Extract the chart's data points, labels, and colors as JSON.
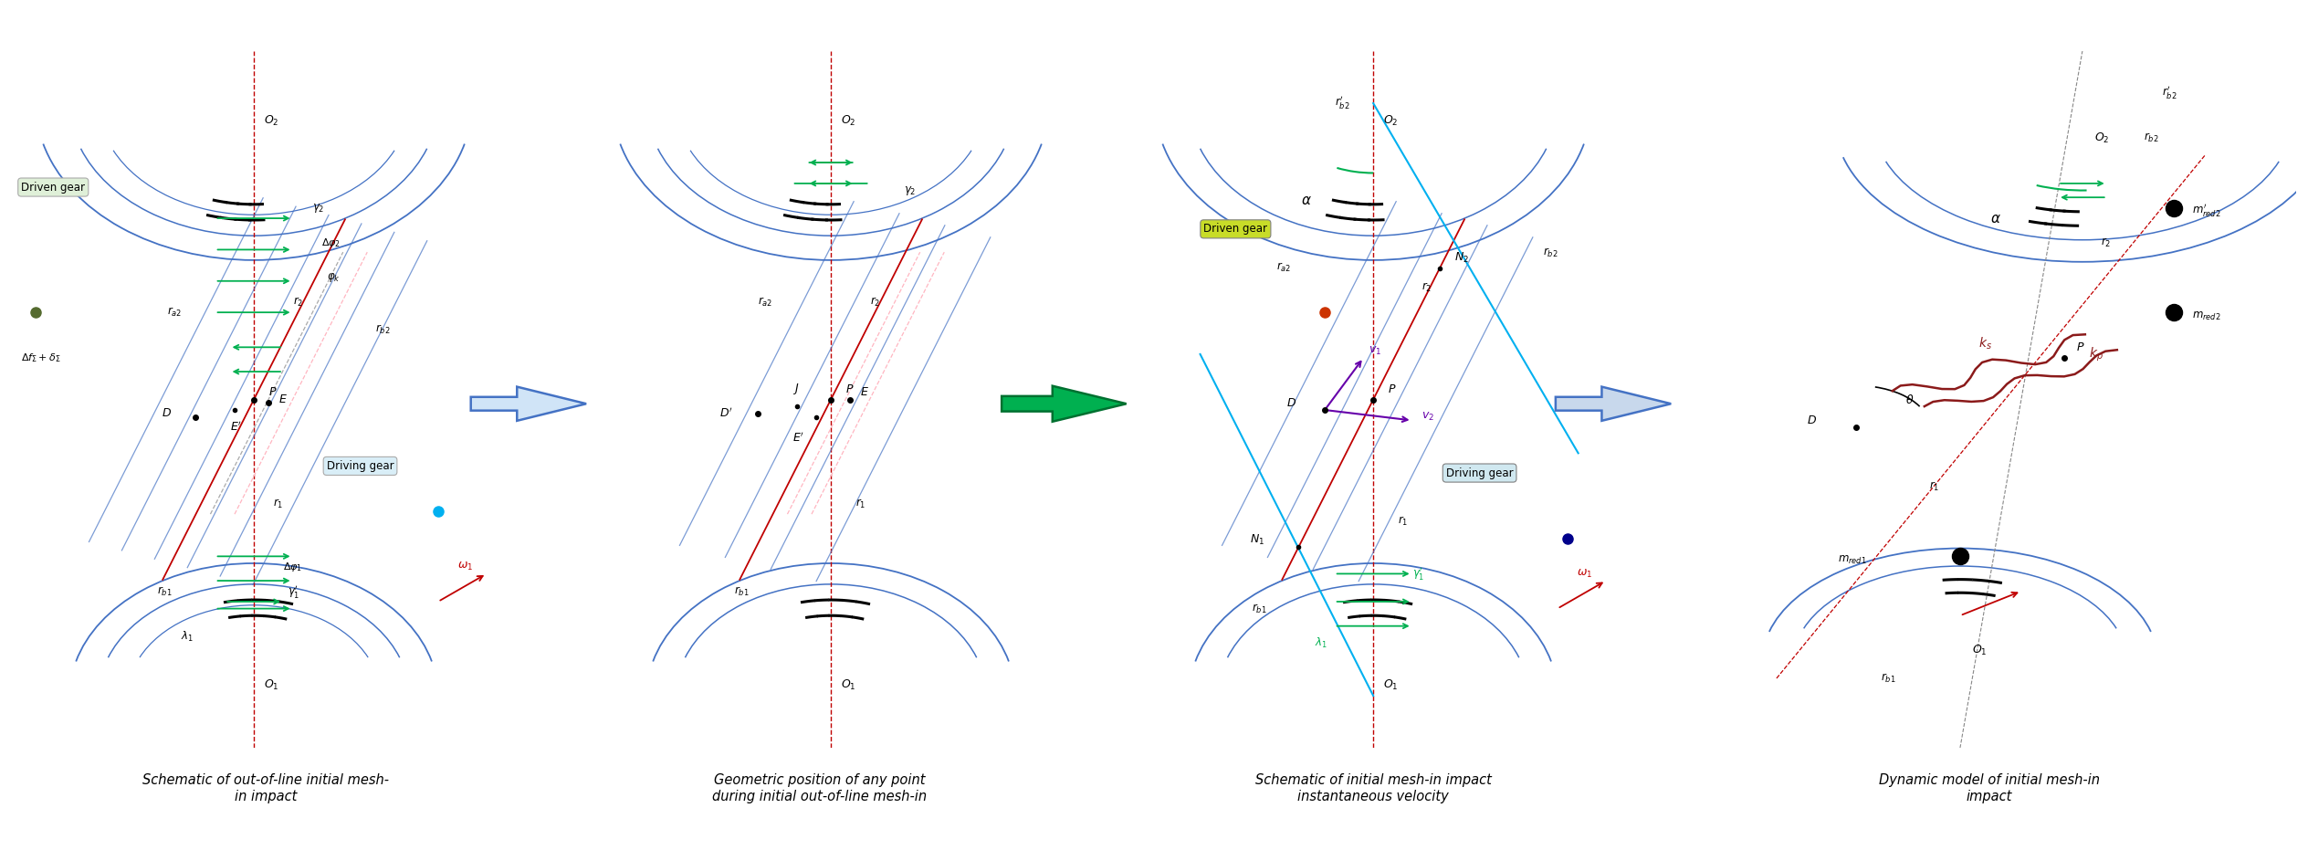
{
  "panel_titles": [
    "Schematic of out-of-line initial mesh-\nin impact",
    "Geometric position of any point\nduring initial out-of-line mesh-in",
    "Schematic of initial mesh-in impact\ninstantaneous velocity",
    "Dynamic model of initial mesh-in\nimpact"
  ],
  "bg_color": "#ffffff",
  "blue": "#4472c4",
  "cyan": "#00b0f0",
  "red": "#c00000",
  "green": "#00b050",
  "dark_green": "#375623",
  "gray": "#7f7f7f",
  "dark_red": "#8b0000",
  "arrow1_color": "#4472c4",
  "arrow2_color": "#00b050",
  "arrow3_color": "#b0c4de",
  "caption_fontsize": 10.5
}
